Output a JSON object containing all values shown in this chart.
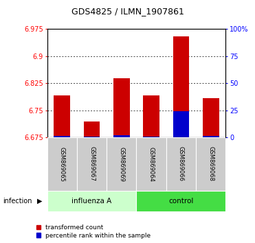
{
  "title": "GDS4825 / ILMN_1907861",
  "samples": [
    "GSM869065",
    "GSM869067",
    "GSM869069",
    "GSM869064",
    "GSM869066",
    "GSM869068"
  ],
  "group_labels": [
    "influenza A",
    "control"
  ],
  "infection_label": "infection",
  "red_values": [
    6.792,
    6.718,
    6.838,
    6.792,
    6.955,
    6.784
  ],
  "blue_values": [
    6.679,
    6.676,
    6.68,
    6.677,
    6.748,
    6.678
  ],
  "base": 6.675,
  "ylim_min": 6.675,
  "ylim_max": 6.975,
  "yticks_left": [
    6.675,
    6.75,
    6.825,
    6.9,
    6.975
  ],
  "yticks_right_vals": [
    0,
    25,
    50,
    75,
    100
  ],
  "yticks_right_labels": [
    "0",
    "25",
    "50",
    "75",
    "100%"
  ],
  "bar_width": 0.55,
  "red_color": "#cc0000",
  "blue_color": "#0000cc",
  "legend_red": "transformed count",
  "legend_blue": "percentile rank within the sample",
  "bg_color": "#ffffff",
  "inflA_color": "#ccffcc",
  "ctrl_color": "#44dd44",
  "label_bg": "#cccccc"
}
